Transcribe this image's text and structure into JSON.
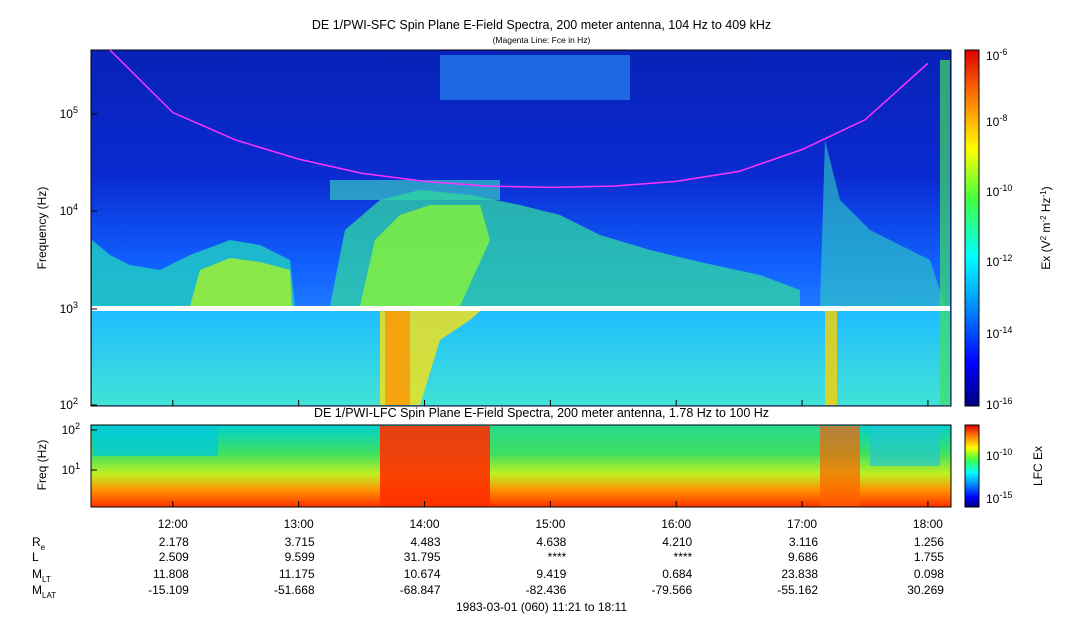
{
  "colors": {
    "background_low": "#00007f",
    "background_mid": "#0033ff",
    "fce_line": "#ff33ff",
    "data_gap": "#ffffff"
  },
  "top_title": "DE 1/PWI-SFC  Spin Plane E-Field Spectra, 200 meter antenna, 104 Hz to 409 kHz",
  "top_subtitle": "(Magenta Line: Fce in Hz)",
  "bottom_title": "DE 1/PWI-LFC  Spin Plane E-Field Spectra, 200 meter antenna, 1.78 Hz to 100 Hz",
  "footer": "1983-03-01 (060) 11:21 to 18:11",
  "chart_data": [
    {
      "type": "heatmap",
      "name": "SFC",
      "ylabel": "Frequency (Hz)",
      "yscale": "log",
      "ylim": [
        100,
        409000
      ],
      "yticks": [
        "10^2",
        "10^3",
        "10^4",
        "10^5"
      ],
      "xlim": [
        "11:21",
        "18:11"
      ],
      "colorbar_label": "Ex (V^2 m^-2 Hz^-1)",
      "colorbar_range": [
        1e-16,
        1e-06
      ],
      "colorbar_ticks": [
        "10^-6",
        "10^-8",
        "10^-10",
        "10^-12",
        "10^-14",
        "10^-16"
      ],
      "fce_line": {
        "label": "Fce in Hz",
        "x": [
          "11:30",
          "12:00",
          "12:30",
          "13:00",
          "13:30",
          "14:00",
          "14:30",
          "15:00",
          "15:30",
          "16:00",
          "16:30",
          "17:00",
          "17:30",
          "18:00"
        ],
        "y": [
          409000,
          95000,
          50000,
          32000,
          23000,
          19000,
          17000,
          16500,
          17000,
          19000,
          24000,
          40000,
          80000,
          300000
        ]
      }
    },
    {
      "type": "heatmap",
      "name": "LFC",
      "ylabel": "Freq (Hz)",
      "yscale": "log",
      "ylim": [
        1.78,
        100
      ],
      "yticks": [
        "10^1",
        "10^2"
      ],
      "xlim": [
        "11:21",
        "18:11"
      ],
      "colorbar_label": "LFC Ex",
      "colorbar_ticks": [
        "10^-10",
        "10^-15"
      ]
    }
  ],
  "x_ticks": [
    "12:00",
    "13:00",
    "14:00",
    "15:00",
    "16:00",
    "17:00",
    "18:00"
  ],
  "ephemeris": {
    "labels": [
      "R",
      "L",
      "M",
      "M"
    ],
    "label_subs": [
      "e",
      "",
      "LT",
      "LAT"
    ],
    "rows": [
      [
        "2.178",
        "3.715",
        "4.483",
        "4.638",
        "4.210",
        "3.116",
        "1.256"
      ],
      [
        "2.509",
        "9.599",
        "31.795",
        "****",
        "****",
        "9.686",
        "1.755"
      ],
      [
        "11.808",
        "11.175",
        "10.674",
        "9.419",
        "0.684",
        "23.838",
        "0.098"
      ],
      [
        "-15.109",
        "-51.668",
        "-68.847",
        "-82.436",
        "-79.566",
        "-55.162",
        "30.269"
      ]
    ]
  }
}
